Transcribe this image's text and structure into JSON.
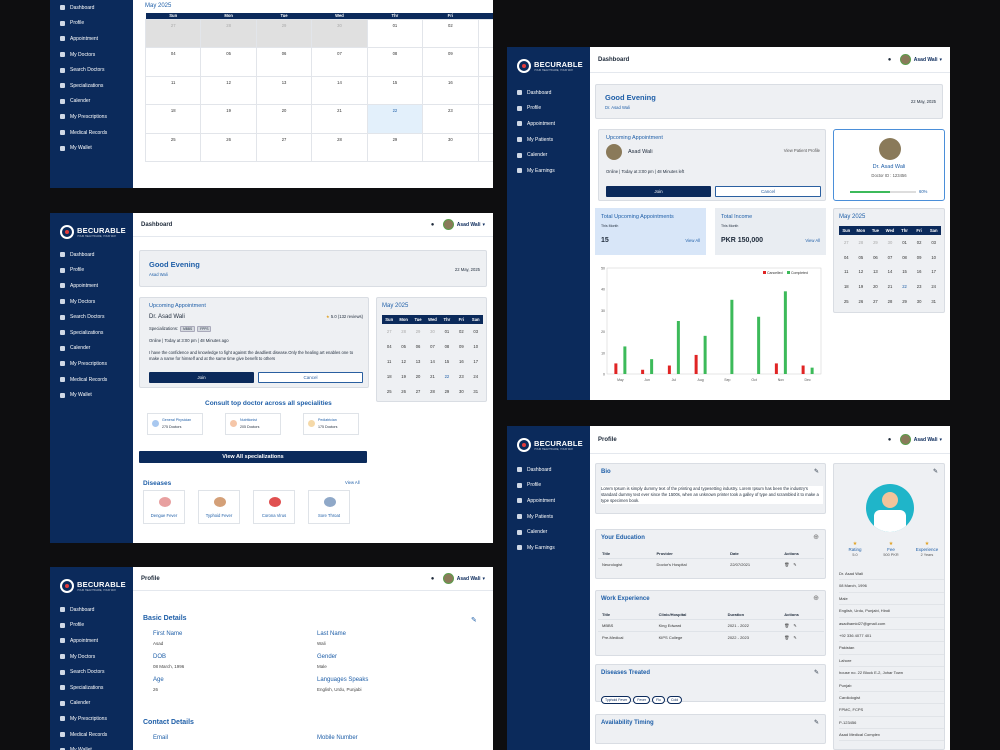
{
  "brand": {
    "name": "BECURABLE",
    "tagline": "YOUR HEALTHCARE, YOUR WAY"
  },
  "patient_nav": [
    "Dashboard",
    "Profile",
    "Appointment",
    "My Doctors",
    "Search Doctors",
    "Specializations",
    "Calender",
    "My Prescriptions",
    "Medical Records",
    "My Wallet"
  ],
  "doctor_nav": [
    "Dashboard",
    "Profile",
    "Appointment",
    "My Patients",
    "Calender",
    "My Earnings"
  ],
  "user": {
    "name": "Asad Wali"
  },
  "calendar": {
    "month": "May 2025",
    "weekdays": [
      "Sun",
      "Mon",
      "Tue",
      "Wed",
      "Thr",
      "Fri",
      "San"
    ],
    "weeks": [
      [
        "27",
        "28",
        "29",
        "30",
        "01",
        "02",
        "03"
      ],
      [
        "04",
        "05",
        "06",
        "07",
        "08",
        "09",
        "10"
      ],
      [
        "11",
        "12",
        "13",
        "14",
        "15",
        "16",
        "17"
      ],
      [
        "18",
        "19",
        "20",
        "21",
        "22",
        "23",
        "24"
      ],
      [
        "25",
        "26",
        "27",
        "28",
        "29",
        "30",
        "31"
      ]
    ]
  },
  "p1": {},
  "p2": {
    "title": "Dashboard",
    "greeting": "Good Evening",
    "sub": "Asad Wali",
    "date": "22 May, 2025",
    "upcoming_title": "Upcoming Appointment",
    "doctor": "Dr. Asad Wali",
    "rating": "5.0 (132 reviews)",
    "spec_label": "Specializations:",
    "badges": [
      "MBBS",
      "FPPS"
    ],
    "time": "Online | Today at 3:00 pm | 48 Minutes ago",
    "quote": "I have the confidence and knowledge to fight against the deadliest disease.Only the healing art enables one to make a name for himself and at the same time give benefit to others",
    "join": "Join",
    "cancel": "Cancel",
    "consult_title": "Consult top doctor across all specialities",
    "specialities": [
      {
        "name": "General Physician",
        "count": "275 Doctors"
      },
      {
        "name": "Nutritionist",
        "count": "205 Doctors"
      },
      {
        "name": "Pediatrician",
        "count": "175 Doctors"
      }
    ],
    "view_all_spec": "View All specializations",
    "diseases_title": "Diseases",
    "view_all": "View All",
    "diseases": [
      "Dengue Fever",
      "Typhoid Fever",
      "Corona Virus",
      "Sore Throat"
    ]
  },
  "p3": {
    "title": "Profile",
    "basic_title": "Basic Details",
    "fields": [
      {
        "label": "First Name",
        "value": "Asad"
      },
      {
        "label": "Last Name",
        "value": "Wali"
      },
      {
        "label": "DOB",
        "value": "08 March, 1996"
      },
      {
        "label": "Gender",
        "value": "Male"
      },
      {
        "label": "Age",
        "value": "26"
      },
      {
        "label": "Languages Speaks",
        "value": "English, Urdu, Punjabi"
      }
    ],
    "contact_title": "Contact Details",
    "contact_fields": [
      {
        "label": "Email"
      },
      {
        "label": "Mobile Number"
      }
    ]
  },
  "p4": {
    "title": "Dashboard",
    "greeting": "Good Evening",
    "sub": "Dr. Asad Wali",
    "date": "22 May, 2025",
    "upcoming_title": "Upcoming Appointment",
    "patient": "Asad Wali",
    "view_profile": "View Patient Profile",
    "time": "Online | Today at 3:00 pm | 48 Minutes left",
    "join": "Join",
    "cancel": "Cancel",
    "doc_name": "Dr. Asad Wali",
    "doc_id": "Doctor ID : 123456",
    "progress_label": "60%",
    "stat1": {
      "title": "Total Upcoming Appointments",
      "sub": "This Month",
      "value": "15",
      "link": "View All"
    },
    "stat2": {
      "title": "Total Income",
      "sub": "This Month",
      "value": "PKR 150,000",
      "link": "View All"
    }
  },
  "p5": {
    "title": "Profile",
    "bio_title": "Bio",
    "bio": "Lorem Ipsum is simply dummy text of the printing and typesetting industry. Lorem Ipsum has been the industry's standard dummy text ever since the 1500s, when an unknown printer took a galley of type and scrambled it to make a type specimen book.",
    "edu_title": "Your Education",
    "edu_headers": [
      "Title",
      "Provider",
      "Date",
      "Actions"
    ],
    "edu_rows": [
      [
        "Neurologist",
        "Doctor's Hospital",
        "22/07/2021"
      ]
    ],
    "work_title": "Work Experience",
    "work_headers": [
      "Title",
      "Clinic/Hospital",
      "Duration",
      "Actions"
    ],
    "work_rows": [
      [
        "MBBS",
        "King Edward",
        "2021 - 2022"
      ],
      [
        "Pre-Medical",
        "KIPS College",
        "2022 - 2023"
      ]
    ],
    "diseases_title": "Diseases Treated",
    "diseases": [
      "Typhoid Fever",
      "Fever",
      "Flu",
      "Cold"
    ],
    "avail_title": "Availability Timing",
    "stats": [
      {
        "label": "Rating",
        "value": "5.0"
      },
      {
        "label": "Fee",
        "value": "500 PKR"
      },
      {
        "label": "Experience",
        "value": "2 Years"
      }
    ],
    "details": [
      "Dr. Asad Wali",
      "08 March, 1996",
      "Male",
      "English, Urdu, Punjabi, Hindi",
      "asadhamid27@gmail.com",
      "+92 336 4077 401",
      "Pakistan",
      "Lahore",
      "house no. 22 Block E-2, Johar Town",
      "Punjab",
      "Cardiologist",
      "FPMC, FCPS",
      "P-123456",
      "Asad Medical Complex"
    ]
  },
  "chart_data": {
    "type": "bar",
    "categories": [
      "May",
      "Jun",
      "Jul",
      "Aug",
      "Sep",
      "Oct",
      "Nov",
      "Dec"
    ],
    "series": [
      {
        "name": "Cancelled",
        "color": "#e02424",
        "values": [
          5,
          2,
          4,
          9,
          0,
          0,
          5,
          4
        ]
      },
      {
        "name": "Completed",
        "color": "#3cba5a",
        "values": [
          13,
          7,
          25,
          18,
          35,
          27,
          39,
          3
        ]
      }
    ],
    "ylim": [
      0,
      50
    ],
    "yticks": [
      0,
      10,
      20,
      30,
      40,
      50
    ],
    "legend": "top-right"
  }
}
